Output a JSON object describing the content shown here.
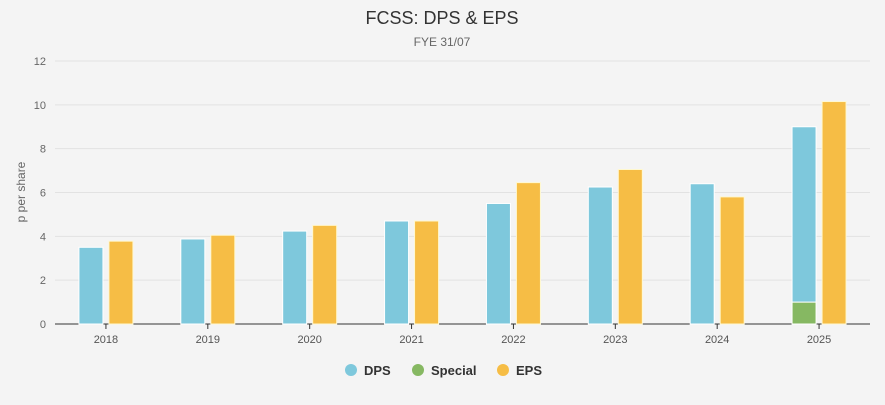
{
  "chart_data": {
    "type": "bar",
    "title": "FCSS: DPS & EPS",
    "subtitle": "FYE 31/07",
    "xlabel": "",
    "ylabel": "p per share",
    "ylim": [
      0,
      12
    ],
    "yticks": [
      0,
      2,
      4,
      6,
      8,
      10,
      12
    ],
    "grid": true,
    "legend": "bottom",
    "categories": [
      "2018",
      "2019",
      "2020",
      "2021",
      "2022",
      "2023",
      "2024",
      "2025"
    ],
    "series": [
      {
        "name": "DPS",
        "color": "#7ec8dc",
        "stack": "div",
        "values": [
          3.5,
          3.88,
          4.24,
          4.7,
          5.5,
          6.25,
          6.4,
          8.0
        ]
      },
      {
        "name": "Special",
        "color": "#86b862",
        "stack": "div",
        "values": [
          0,
          0,
          0,
          0,
          0,
          0,
          0,
          1.0
        ]
      },
      {
        "name": "EPS",
        "color": "#f6bd45",
        "stack": "eps",
        "values": [
          3.78,
          4.05,
          4.5,
          4.7,
          6.45,
          7.05,
          5.8,
          10.15
        ]
      }
    ]
  }
}
